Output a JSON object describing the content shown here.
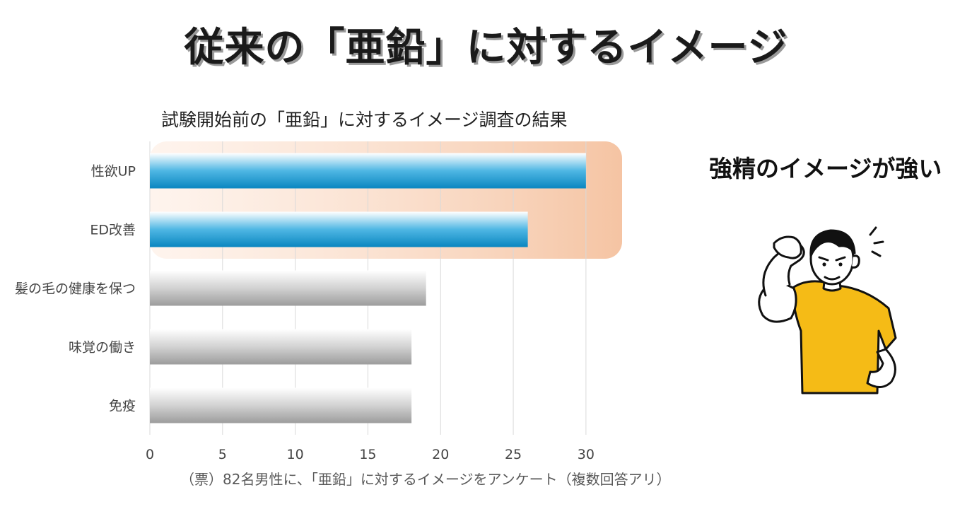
{
  "heading": {
    "title": "従来の「亜鉛」に対するイメージ",
    "side_caption": "強精のイメージが強い",
    "illustration": "flexing-man-icon"
  },
  "chart_data": {
    "type": "bar",
    "orientation": "horizontal",
    "title": "試験開始前の「亜鉛」に対するイメージ調査の結果",
    "note": "（票）82名男性に、「亜鉛」に対するイメージをアンケート（複数回答アリ）",
    "categories": [
      "性欲UP",
      "ED改善",
      "髪の毛の健康を保つ",
      "味覚の働き",
      "免疫"
    ],
    "values": [
      30,
      26,
      19,
      18,
      18
    ],
    "xlim": [
      0,
      32
    ],
    "xticks": [
      0,
      5,
      10,
      15,
      20,
      25,
      30
    ],
    "grid": true,
    "highlighted_categories": [
      "性欲UP",
      "ED改善"
    ],
    "colors": {
      "highlight_bar": "#0b8fc8",
      "normal_bar": "#a8a8a8",
      "highlight_band": "#f5c4a3"
    }
  }
}
